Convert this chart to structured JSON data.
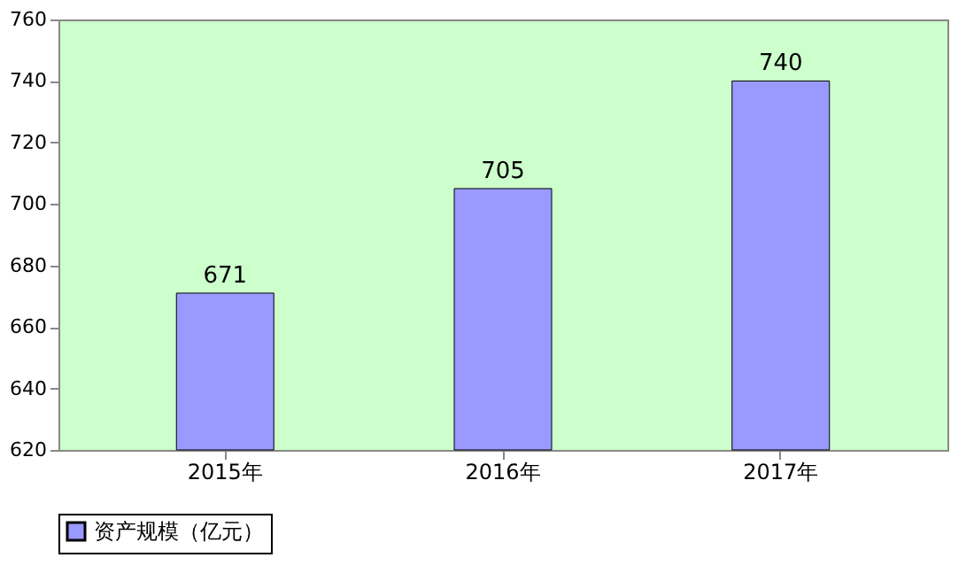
{
  "chart_data": {
    "type": "bar",
    "categories": [
      "2015年",
      "2016年",
      "2017年"
    ],
    "series": [
      {
        "name": "资产规模（亿元）",
        "color": "#9999ff",
        "values": [
          671,
          705,
          740
        ]
      }
    ],
    "ylim": [
      620,
      760
    ],
    "yticks": [
      620,
      640,
      660,
      680,
      700,
      720,
      740,
      760
    ],
    "data_labels": true,
    "grid": false,
    "legend": "bottom"
  }
}
